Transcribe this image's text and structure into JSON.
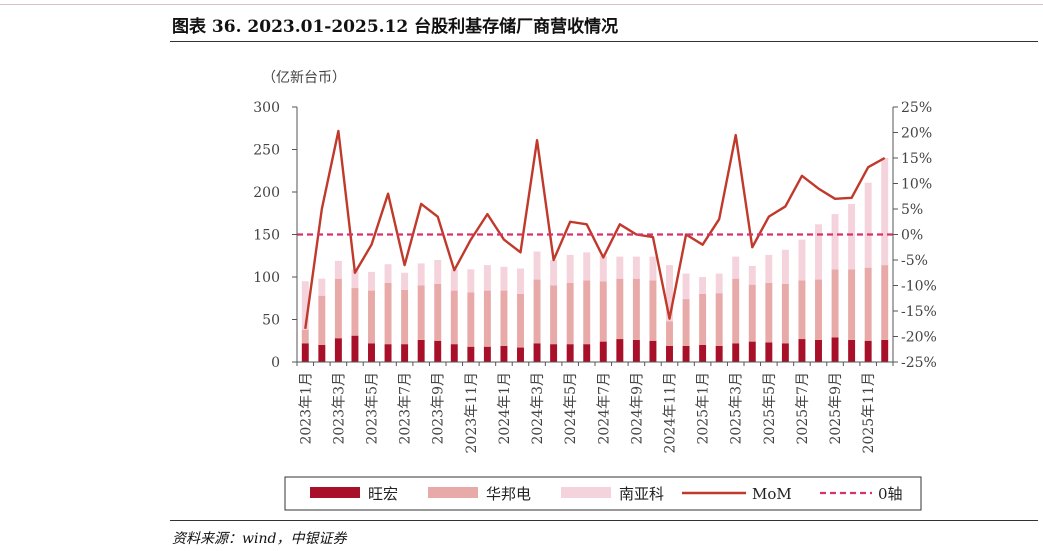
{
  "title": "图表 36. 2023.01-2025.12 台股利基存储厂商营收情况",
  "source": "资料来源：wind，中银证券",
  "chart_data": {
    "type": "bar",
    "stacked": true,
    "y_unit_label": "（亿新台币）",
    "categories": [
      "2023年1月",
      "2023年2月",
      "2023年3月",
      "2023年4月",
      "2023年5月",
      "2023年6月",
      "2023年7月",
      "2023年8月",
      "2023年9月",
      "2023年10月",
      "2023年11月",
      "2023年12月",
      "2024年1月",
      "2024年2月",
      "2024年3月",
      "2024年4月",
      "2024年5月",
      "2024年6月",
      "2024年7月",
      "2024年8月",
      "2024年9月",
      "2024年10月",
      "2024年11月",
      "2024年12月",
      "2025年1月",
      "2025年2月",
      "2025年3月",
      "2025年4月",
      "2025年5月",
      "2025年6月",
      "2025年7月",
      "2025年8月",
      "2025年9月",
      "2025年10月",
      "2025年11月",
      "2025年12月"
    ],
    "x_tick_labels": [
      "2023年1月",
      "",
      "2023年3月",
      "",
      "2023年5月",
      "",
      "2023年7月",
      "",
      "2023年9月",
      "",
      "2023年11月",
      "",
      "2024年1月",
      "",
      "2024年3月",
      "",
      "2024年5月",
      "",
      "2024年7月",
      "",
      "2024年9月",
      "",
      "2024年11月",
      "",
      "2025年1月",
      "",
      "2025年3月",
      "",
      "2025年5月",
      "",
      "2025年7月",
      "",
      "2025年9月",
      "",
      "2025年11月",
      ""
    ],
    "series": [
      {
        "name": "旺宏",
        "color": "#a8102a",
        "values": [
          22,
          20,
          28,
          31,
          22,
          21,
          21,
          26,
          25,
          21,
          18,
          18,
          19,
          17,
          22,
          21,
          21,
          21,
          24,
          27,
          26,
          25,
          19,
          19,
          20,
          19,
          22,
          24,
          23,
          22,
          27,
          26,
          29,
          26,
          25,
          26
        ]
      },
      {
        "name": "华邦电",
        "color": "#e8aaa8",
        "values": [
          16,
          58,
          70,
          56,
          62,
          72,
          64,
          64,
          67,
          63,
          64,
          66,
          65,
          63,
          75,
          69,
          72,
          75,
          71,
          71,
          72,
          71,
          29,
          55,
          60,
          62,
          76,
          67,
          70,
          70,
          69,
          71,
          80,
          83,
          86,
          88
        ]
      },
      {
        "name": "南亚科",
        "color": "#f5d3dc",
        "values": [
          57,
          20,
          21,
          22,
          22,
          22,
          20,
          26,
          28,
          25,
          27,
          30,
          28,
          30,
          33,
          30,
          33,
          33,
          30,
          26,
          26,
          28,
          66,
          30,
          20,
          23,
          26,
          22,
          33,
          40,
          48,
          65,
          65,
          77,
          100,
          126
        ]
      }
    ],
    "secondary_series": [
      {
        "name": "MoM",
        "color": "#c0392b",
        "type": "line",
        "axis": "right",
        "values": [
          -18.5,
          5,
          20.3,
          -7.5,
          -2,
          8,
          -6,
          6,
          3.5,
          -7,
          -1,
          4,
          -1,
          -3.5,
          18.5,
          -5,
          2.5,
          2,
          -4.5,
          2,
          0,
          -0.5,
          -16.5,
          0,
          -2,
          3,
          19.5,
          -2.5,
          3.5,
          5.5,
          11.5,
          9,
          7,
          7.2,
          13.2,
          15
        ]
      },
      {
        "name": "0轴",
        "color": "#d6336c",
        "type": "line",
        "style": "dashed",
        "axis": "right",
        "values": [
          0,
          0,
          0,
          0,
          0,
          0,
          0,
          0,
          0,
          0,
          0,
          0,
          0,
          0,
          0,
          0,
          0,
          0,
          0,
          0,
          0,
          0,
          0,
          0,
          0,
          0,
          0,
          0,
          0,
          0,
          0,
          0,
          0,
          0,
          0,
          0
        ]
      }
    ],
    "ylim": [
      0,
      300
    ],
    "y_ticks": [
      "0",
      "50",
      "100",
      "150",
      "200",
      "250",
      "300"
    ],
    "y2lim": [
      -25,
      25
    ],
    "y2_ticks": [
      "-25%",
      "-20%",
      "-15%",
      "-10%",
      "-5%",
      "0%",
      "5%",
      "10%",
      "15%",
      "20%",
      "25%"
    ],
    "legend_position": "bottom",
    "grid": false
  }
}
